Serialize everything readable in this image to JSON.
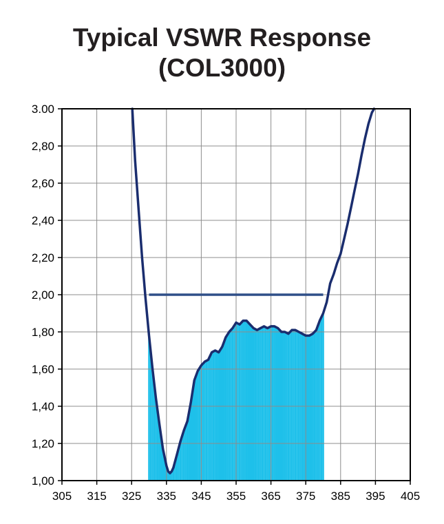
{
  "chart_data": {
    "type": "line",
    "title": "Typical VSWR Response",
    "subtitle": "(COL3000)",
    "xlabel": "",
    "ylabel": "",
    "xlim": [
      305,
      405
    ],
    "ylim": [
      1.0,
      3.0
    ],
    "x_ticks": [
      "305",
      "315",
      "325",
      "335",
      "345",
      "355",
      "365",
      "375",
      "385",
      "395",
      "405"
    ],
    "y_ticks": [
      "1,00",
      "1,20",
      "1,40",
      "1,60",
      "1,80",
      "2,00",
      "2,20",
      "2,40",
      "2,60",
      "2,80",
      "3.00"
    ],
    "grid": true,
    "colors": {
      "curve": "#1a2d6e",
      "spec_line": "#2f4f88",
      "fill": "#1ec0ea",
      "grid": "#8c8c8c"
    },
    "series": [
      {
        "x": [
          325.2,
          326,
          327,
          328,
          329,
          330,
          331,
          332,
          333,
          334,
          335,
          335.5,
          336,
          336.5,
          337,
          338,
          339,
          340,
          341,
          342,
          343,
          344,
          345,
          346,
          347,
          348,
          349,
          350,
          351,
          352,
          353,
          354,
          355,
          356,
          357,
          358,
          359,
          360,
          361,
          362,
          363,
          364,
          365,
          366,
          367,
          368,
          369,
          370,
          371,
          372,
          373,
          374,
          375,
          376,
          377,
          378,
          379,
          380,
          381,
          382,
          383,
          384,
          385,
          386,
          387,
          388,
          389,
          390,
          391,
          392,
          393,
          394,
          394.6
        ],
        "y": [
          3.0,
          2.72,
          2.46,
          2.2,
          1.98,
          1.78,
          1.6,
          1.44,
          1.3,
          1.17,
          1.08,
          1.05,
          1.04,
          1.05,
          1.07,
          1.14,
          1.21,
          1.27,
          1.32,
          1.42,
          1.54,
          1.59,
          1.62,
          1.64,
          1.65,
          1.69,
          1.7,
          1.69,
          1.72,
          1.77,
          1.8,
          1.82,
          1.85,
          1.84,
          1.86,
          1.86,
          1.84,
          1.82,
          1.81,
          1.82,
          1.83,
          1.82,
          1.83,
          1.83,
          1.82,
          1.8,
          1.8,
          1.79,
          1.81,
          1.81,
          1.8,
          1.79,
          1.78,
          1.78,
          1.79,
          1.81,
          1.86,
          1.9,
          1.96,
          2.06,
          2.11,
          2.17,
          2.22,
          2.3,
          2.38,
          2.47,
          2.56,
          2.65,
          2.75,
          2.84,
          2.92,
          2.98,
          3.0
        ]
      }
    ],
    "threshold": {
      "y": 2.0,
      "x_range": [
        330,
        380
      ]
    },
    "shaded_range": [
      330,
      380
    ]
  }
}
